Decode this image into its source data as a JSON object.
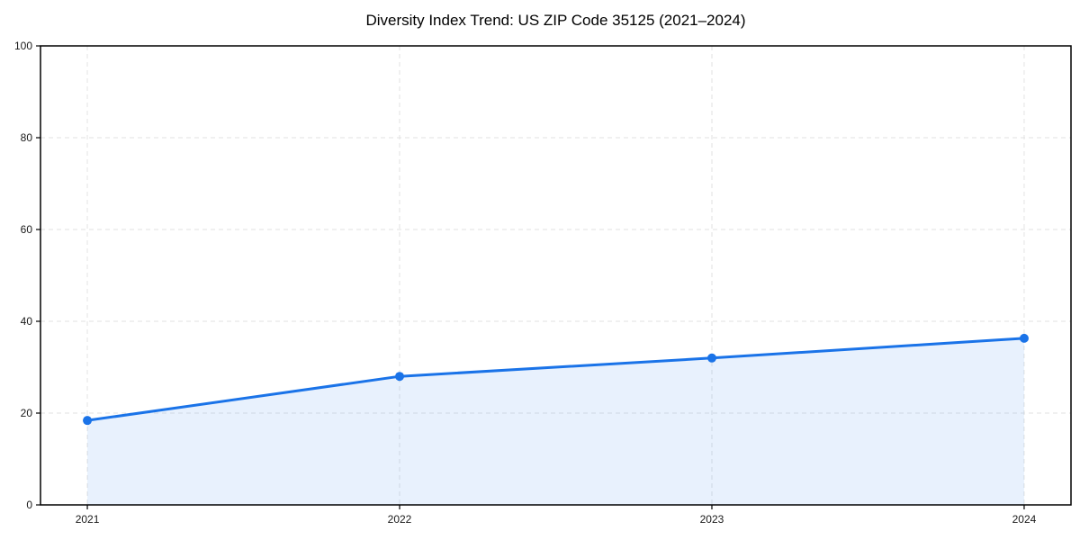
{
  "title": "Diversity Index Trend: US ZIP Code 35125 (2021–2024)",
  "chart_data": {
    "type": "area",
    "title": "Diversity Index Trend: US ZIP Code 35125 (2021–2024)",
    "categories": [
      "2021",
      "2022",
      "2023",
      "2024"
    ],
    "x": [
      2021,
      2022,
      2023,
      2024
    ],
    "series": [
      {
        "name": "Diversity Index",
        "values": [
          18.4,
          28.0,
          32.0,
          36.3
        ]
      }
    ],
    "xlabel": "",
    "ylabel": "",
    "xlim": [
      2020.85,
      2024.15
    ],
    "ylim": [
      0,
      100
    ],
    "yticks": [
      0,
      20,
      40,
      60,
      80,
      100
    ],
    "grid": "on",
    "grid_style": "dashed",
    "legend_position": "none",
    "colors": {
      "line": "#1a73e8",
      "marker": "#1a73e8",
      "area_fill": "#1a73e8",
      "area_fill_opacity": 0.1,
      "gridline": "#e2e2e2",
      "spine": "#000000",
      "tick_label": "#1a1a1a",
      "title": "#000000",
      "background": "#ffffff"
    }
  }
}
